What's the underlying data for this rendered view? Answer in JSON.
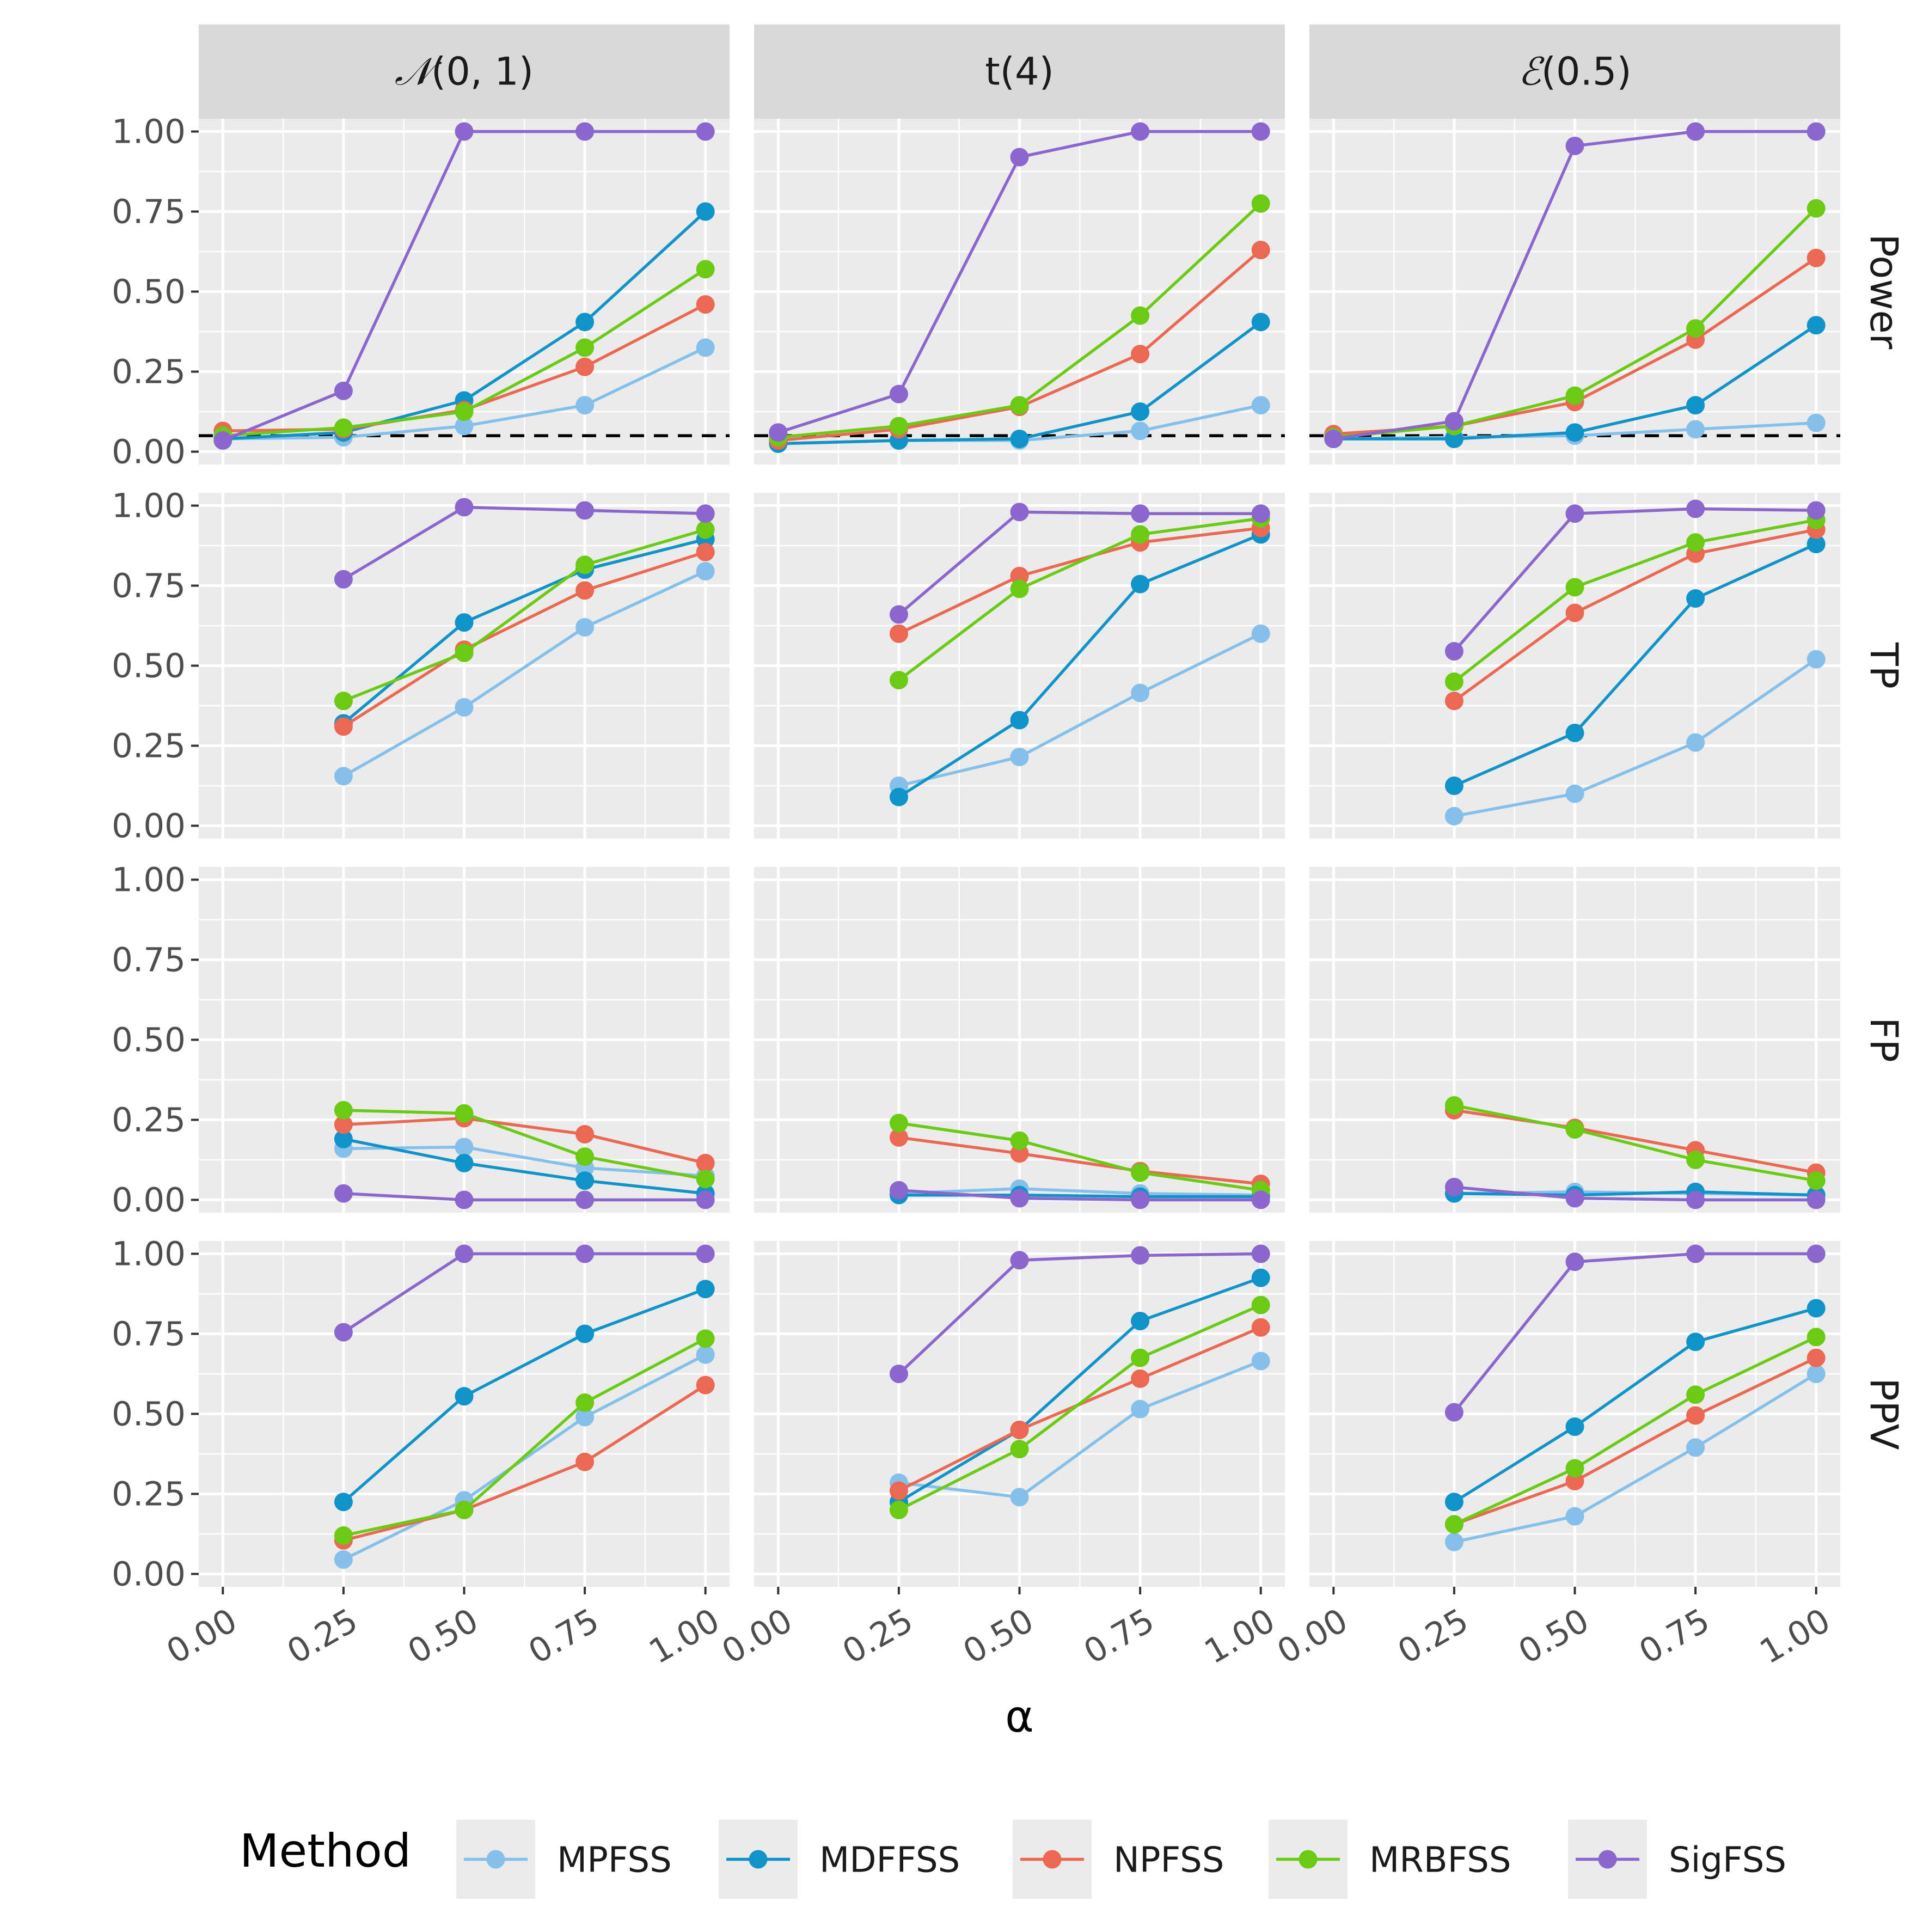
{
  "chart_data": {
    "type": "line",
    "x": [
      0.0,
      0.25,
      0.5,
      0.75,
      1.0
    ],
    "xlabel": "α",
    "x_tick_labels": [
      "0.00",
      "0.25",
      "0.50",
      "0.75",
      "1.00"
    ],
    "y_tick_labels": [
      "0.00",
      "0.25",
      "0.50",
      "0.75",
      "1.00"
    ],
    "ylim": [
      -0.04,
      1.04
    ],
    "xlim": [
      -0.05,
      1.05
    ],
    "reference_line": {
      "metric": "Power",
      "y": 0.05,
      "style": "dashed",
      "color": "#000000"
    },
    "grid": true,
    "legend": {
      "title": "Method",
      "position": "bottom"
    },
    "columns": [
      {
        "key": "normal",
        "label_prefix": "𝒩",
        "label_suffix": "(0, 1)"
      },
      {
        "key": "t",
        "label_prefix": "",
        "label_suffix": "t(4)"
      },
      {
        "key": "exp",
        "label_prefix": "ℰ",
        "label_suffix": "(0.5)"
      }
    ],
    "rows": [
      "Power",
      "TP",
      "FP",
      "PPV"
    ],
    "methods": [
      {
        "name": "MPFSS",
        "color": "#85C0EB"
      },
      {
        "name": "MDFFSS",
        "color": "#0F93C8"
      },
      {
        "name": "NPFSS",
        "color": "#EB6952"
      },
      {
        "name": "MRBFSS",
        "color": "#6BCB14"
      },
      {
        "name": "SigFSS",
        "color": "#8B66CC"
      }
    ],
    "panels": [
      {
        "row": "Power",
        "column": "normal",
        "series": [
          {
            "name": "MPFSS",
            "values": [
              0.04,
              0.045,
              0.08,
              0.145,
              0.325
            ]
          },
          {
            "name": "MDFFSS",
            "values": [
              0.04,
              0.06,
              0.16,
              0.405,
              0.75
            ]
          },
          {
            "name": "NPFSS",
            "values": [
              0.065,
              0.07,
              0.13,
              0.265,
              0.46
            ]
          },
          {
            "name": "MRBFSS",
            "values": [
              0.05,
              0.075,
              0.125,
              0.325,
              0.57
            ]
          },
          {
            "name": "SigFSS",
            "values": [
              0.035,
              0.19,
              1.0,
              1.0,
              1.0
            ]
          }
        ]
      },
      {
        "row": "Power",
        "column": "t",
        "series": [
          {
            "name": "MPFSS",
            "values": [
              0.025,
              0.035,
              0.035,
              0.065,
              0.145
            ]
          },
          {
            "name": "MDFFSS",
            "values": [
              0.025,
              0.035,
              0.04,
              0.125,
              0.405
            ]
          },
          {
            "name": "NPFSS",
            "values": [
              0.035,
              0.07,
              0.14,
              0.305,
              0.63
            ]
          },
          {
            "name": "MRBFSS",
            "values": [
              0.045,
              0.08,
              0.145,
              0.425,
              0.775
            ]
          },
          {
            "name": "SigFSS",
            "values": [
              0.06,
              0.18,
              0.92,
              1.0,
              1.0
            ]
          }
        ]
      },
      {
        "row": "Power",
        "column": "exp",
        "series": [
          {
            "name": "MPFSS",
            "values": [
              0.04,
              0.045,
              0.05,
              0.07,
              0.09
            ]
          },
          {
            "name": "MDFFSS",
            "values": [
              0.04,
              0.04,
              0.06,
              0.145,
              0.395
            ]
          },
          {
            "name": "NPFSS",
            "values": [
              0.055,
              0.08,
              0.155,
              0.35,
              0.605
            ]
          },
          {
            "name": "MRBFSS",
            "values": [
              0.045,
              0.08,
              0.175,
              0.385,
              0.76
            ]
          },
          {
            "name": "SigFSS",
            "values": [
              0.04,
              0.095,
              0.955,
              1.0,
              1.0
            ]
          }
        ]
      },
      {
        "row": "TP",
        "column": "normal",
        "series": [
          {
            "name": "MPFSS",
            "values": [
              null,
              0.155,
              0.37,
              0.62,
              0.795
            ]
          },
          {
            "name": "MDFFSS",
            "values": [
              null,
              0.32,
              0.635,
              0.8,
              0.895
            ]
          },
          {
            "name": "NPFSS",
            "values": [
              null,
              0.31,
              0.55,
              0.735,
              0.855
            ]
          },
          {
            "name": "MRBFSS",
            "values": [
              null,
              0.39,
              0.54,
              0.815,
              0.925
            ]
          },
          {
            "name": "SigFSS",
            "values": [
              null,
              0.77,
              0.995,
              0.985,
              0.975
            ]
          }
        ]
      },
      {
        "row": "TP",
        "column": "t",
        "series": [
          {
            "name": "MPFSS",
            "values": [
              null,
              0.125,
              0.215,
              0.415,
              0.6
            ]
          },
          {
            "name": "MDFFSS",
            "values": [
              null,
              0.09,
              0.33,
              0.755,
              0.91
            ]
          },
          {
            "name": "NPFSS",
            "values": [
              null,
              0.6,
              0.78,
              0.885,
              0.93
            ]
          },
          {
            "name": "MRBFSS",
            "values": [
              null,
              0.455,
              0.74,
              0.91,
              0.96
            ]
          },
          {
            "name": "SigFSS",
            "values": [
              null,
              0.66,
              0.98,
              0.975,
              0.975
            ]
          }
        ]
      },
      {
        "row": "TP",
        "column": "exp",
        "series": [
          {
            "name": "MPFSS",
            "values": [
              null,
              0.03,
              0.1,
              0.26,
              0.52
            ]
          },
          {
            "name": "MDFFSS",
            "values": [
              null,
              0.125,
              0.29,
              0.71,
              0.88
            ]
          },
          {
            "name": "NPFSS",
            "values": [
              null,
              0.39,
              0.665,
              0.85,
              0.925
            ]
          },
          {
            "name": "MRBFSS",
            "values": [
              null,
              0.45,
              0.745,
              0.885,
              0.955
            ]
          },
          {
            "name": "SigFSS",
            "values": [
              null,
              0.545,
              0.975,
              0.99,
              0.985
            ]
          }
        ]
      },
      {
        "row": "FP",
        "column": "normal",
        "series": [
          {
            "name": "MPFSS",
            "values": [
              null,
              0.16,
              0.165,
              0.1,
              0.075
            ]
          },
          {
            "name": "MDFFSS",
            "values": [
              null,
              0.19,
              0.115,
              0.06,
              0.02
            ]
          },
          {
            "name": "NPFSS",
            "values": [
              null,
              0.235,
              0.255,
              0.205,
              0.115
            ]
          },
          {
            "name": "MRBFSS",
            "values": [
              null,
              0.28,
              0.27,
              0.135,
              0.065
            ]
          },
          {
            "name": "SigFSS",
            "values": [
              null,
              0.02,
              0.0,
              0.0,
              0.0
            ]
          }
        ]
      },
      {
        "row": "FP",
        "column": "t",
        "series": [
          {
            "name": "MPFSS",
            "values": [
              null,
              0.02,
              0.035,
              0.02,
              0.015
            ]
          },
          {
            "name": "MDFFSS",
            "values": [
              null,
              0.015,
              0.015,
              0.01,
              0.01
            ]
          },
          {
            "name": "NPFSS",
            "values": [
              null,
              0.195,
              0.145,
              0.09,
              0.05
            ]
          },
          {
            "name": "MRBFSS",
            "values": [
              null,
              0.24,
              0.185,
              0.085,
              0.03
            ]
          },
          {
            "name": "SigFSS",
            "values": [
              null,
              0.03,
              0.005,
              0.0,
              0.0
            ]
          }
        ]
      },
      {
        "row": "FP",
        "column": "exp",
        "series": [
          {
            "name": "MPFSS",
            "values": [
              null,
              0.02,
              0.025,
              0.02,
              0.015
            ]
          },
          {
            "name": "MDFFSS",
            "values": [
              null,
              0.02,
              0.015,
              0.025,
              0.015
            ]
          },
          {
            "name": "NPFSS",
            "values": [
              null,
              0.28,
              0.225,
              0.155,
              0.085
            ]
          },
          {
            "name": "MRBFSS",
            "values": [
              null,
              0.295,
              0.22,
              0.125,
              0.06
            ]
          },
          {
            "name": "SigFSS",
            "values": [
              null,
              0.04,
              0.005,
              0.0,
              0.0
            ]
          }
        ]
      },
      {
        "row": "PPV",
        "column": "normal",
        "series": [
          {
            "name": "MPFSS",
            "values": [
              null,
              0.045,
              0.23,
              0.49,
              0.685
            ]
          },
          {
            "name": "MDFFSS",
            "values": [
              null,
              0.225,
              0.555,
              0.75,
              0.89
            ]
          },
          {
            "name": "NPFSS",
            "values": [
              null,
              0.105,
              0.2,
              0.35,
              0.59
            ]
          },
          {
            "name": "MRBFSS",
            "values": [
              null,
              0.12,
              0.2,
              0.535,
              0.735
            ]
          },
          {
            "name": "SigFSS",
            "values": [
              null,
              0.755,
              1.0,
              1.0,
              1.0
            ]
          }
        ]
      },
      {
        "row": "PPV",
        "column": "t",
        "series": [
          {
            "name": "MPFSS",
            "values": [
              null,
              0.285,
              0.24,
              0.515,
              0.665
            ]
          },
          {
            "name": "MDFFSS",
            "values": [
              null,
              0.225,
              0.45,
              0.79,
              0.925
            ]
          },
          {
            "name": "NPFSS",
            "values": [
              null,
              0.26,
              0.45,
              0.61,
              0.77
            ]
          },
          {
            "name": "MRBFSS",
            "values": [
              null,
              0.2,
              0.39,
              0.675,
              0.84
            ]
          },
          {
            "name": "SigFSS",
            "values": [
              null,
              0.625,
              0.98,
              0.995,
              1.0
            ]
          }
        ]
      },
      {
        "row": "PPV",
        "column": "exp",
        "series": [
          {
            "name": "MPFSS",
            "values": [
              null,
              0.1,
              0.18,
              0.395,
              0.625
            ]
          },
          {
            "name": "MDFFSS",
            "values": [
              null,
              0.225,
              0.46,
              0.725,
              0.83
            ]
          },
          {
            "name": "NPFSS",
            "values": [
              null,
              0.155,
              0.29,
              0.495,
              0.675
            ]
          },
          {
            "name": "MRBFSS",
            "values": [
              null,
              0.155,
              0.33,
              0.56,
              0.74
            ]
          },
          {
            "name": "SigFSS",
            "values": [
              null,
              0.505,
              0.975,
              1.0,
              1.0
            ]
          }
        ]
      }
    ]
  }
}
